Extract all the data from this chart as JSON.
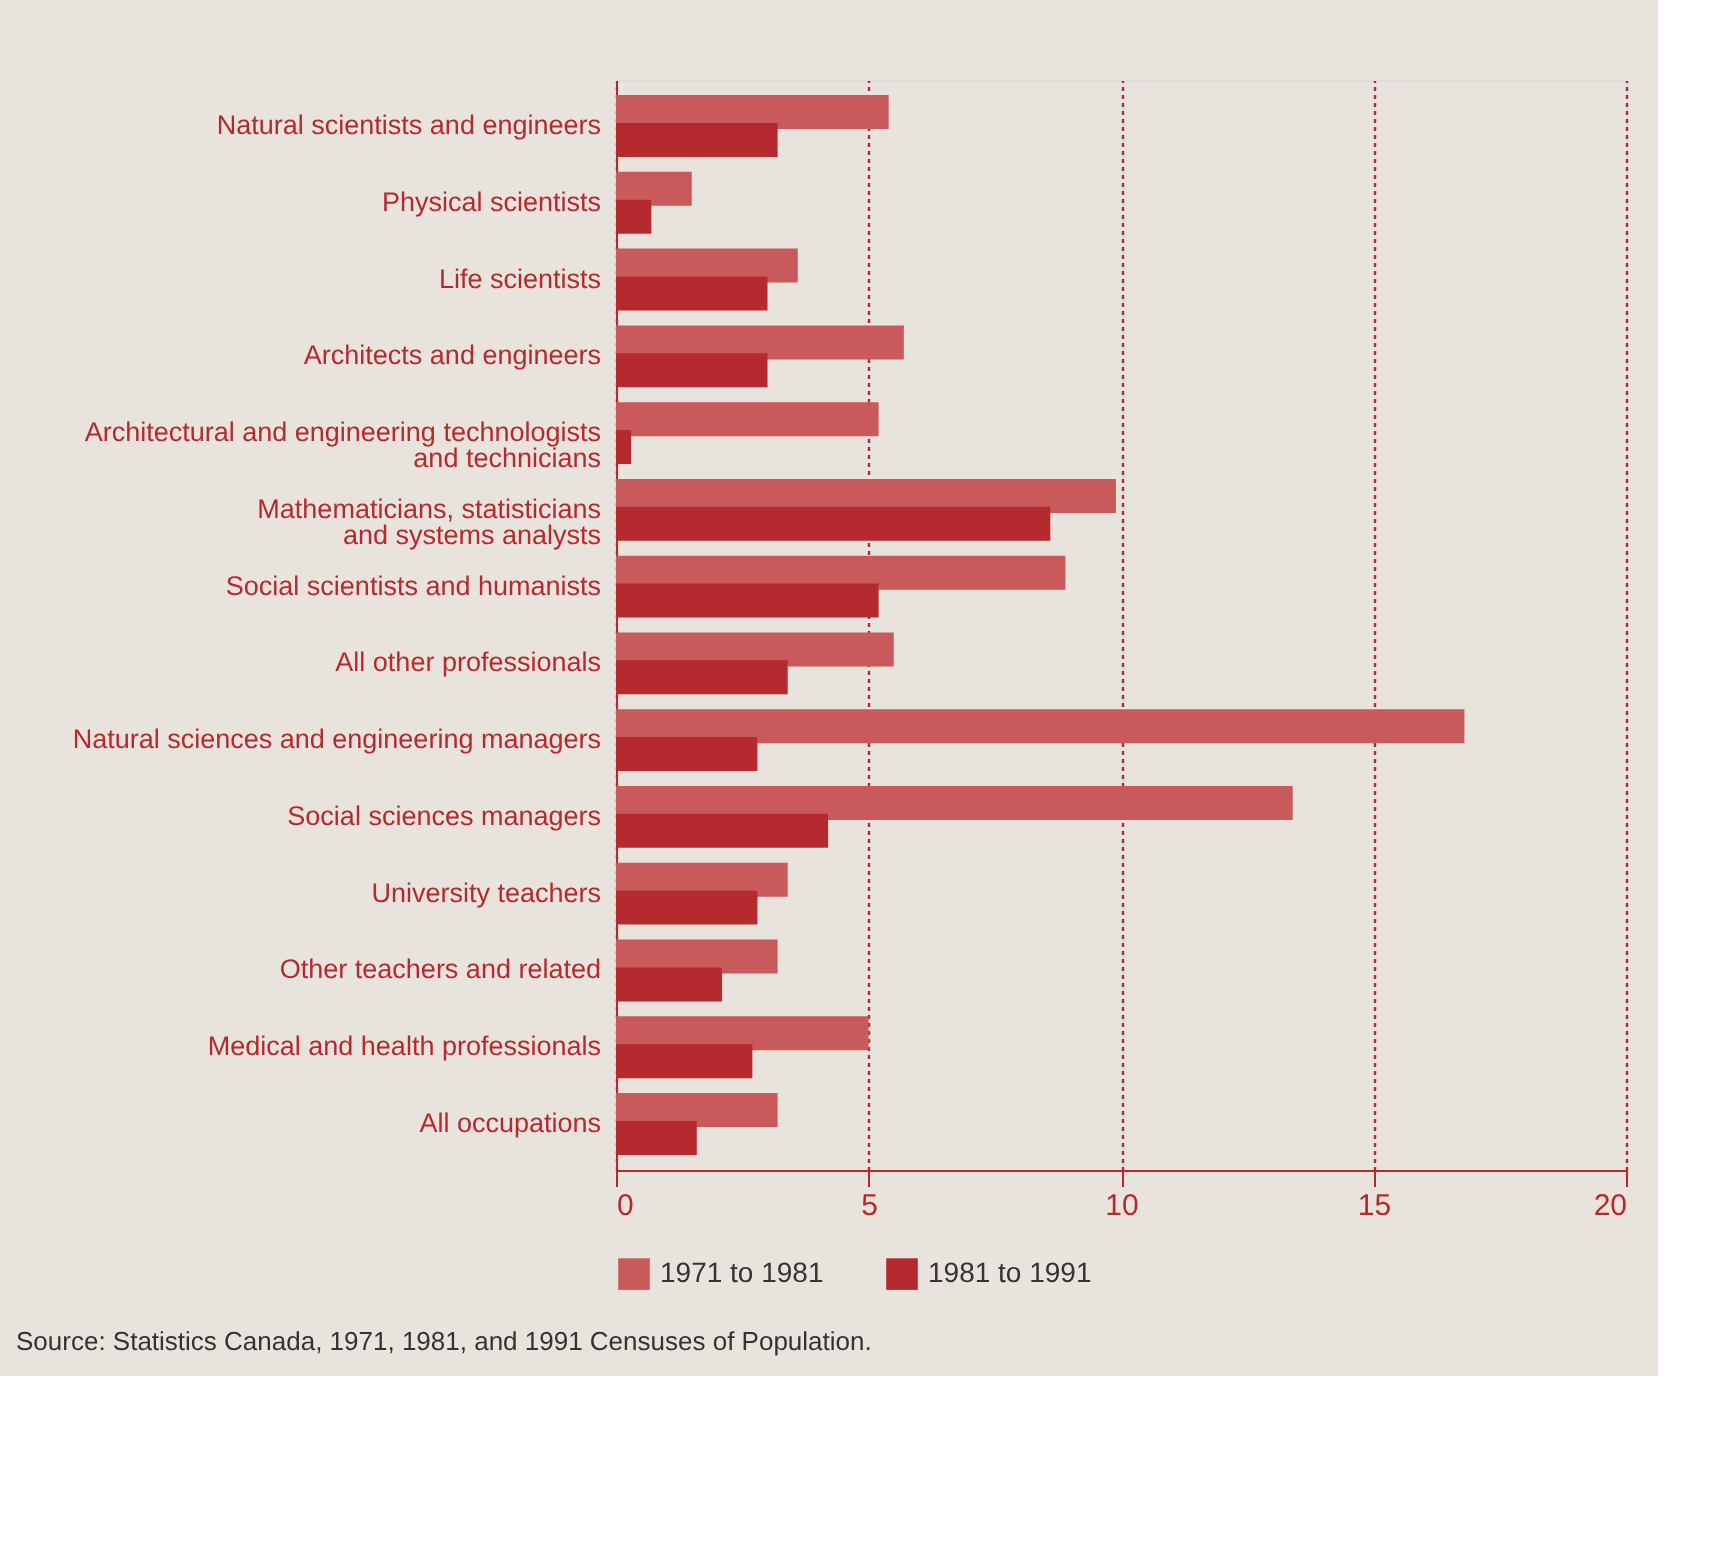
{
  "chart_data": {
    "type": "bar",
    "orientation": "horizontal",
    "categories": [
      "Natural scientists and engineers",
      "Physical scientists",
      "Life scientists",
      "Architects and engineers",
      "Architectural and engineering technologists\nand technicians",
      "Mathematicians, statisticians\nand systems analysts",
      "Social scientists and humanists",
      "All other professionals",
      "Natural sciences and engineering managers",
      "Social sciences managers",
      "University teachers",
      "Other teachers and related",
      "Medical and health professionals",
      "All occupations"
    ],
    "series": [
      {
        "name": "1971 to 1981",
        "color": "#c95a5c",
        "values": [
          5.4,
          1.5,
          3.6,
          5.7,
          5.2,
          9.9,
          8.9,
          5.5,
          16.8,
          13.4,
          3.4,
          3.2,
          5.0,
          3.2
        ]
      },
      {
        "name": "1981 to 1991",
        "color": "#b52a2e",
        "values": [
          3.2,
          0.7,
          3.0,
          3.0,
          0.3,
          8.6,
          5.2,
          3.4,
          2.8,
          4.2,
          2.8,
          2.1,
          2.7,
          1.6
        ]
      }
    ],
    "xlim": [
      0,
      20
    ],
    "xticks": [
      0,
      5,
      10,
      15,
      20
    ],
    "grid": "x",
    "legend": "bottom",
    "annotations": [
      "Source: Statistics Canada, 1971, 1981, and 1991 Censuses of Population."
    ]
  }
}
